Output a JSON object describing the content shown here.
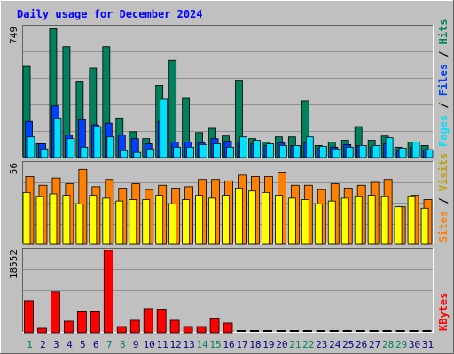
{
  "title": "Daily usage for December 2024",
  "colors": {
    "hits": "#00805c",
    "files": "#0040ff",
    "pages": "#00e0ff",
    "visits": "#ffff00",
    "sites": "#ff8000",
    "kbytes": "#ff0000",
    "weekend_day": "#00805c",
    "weekday_day": "#000080",
    "panel_bg": "#c0c0c0"
  },
  "labels": {
    "hits": "Hits",
    "files": "Files",
    "pages": "Pages",
    "visits": "Visits",
    "sites": "Sites",
    "kbytes": "KBytes",
    "slash": " / "
  },
  "chart_data": [
    {
      "type": "bar",
      "panel": "hits-files-pages",
      "ymax_label": "749",
      "ylim": [
        0,
        749
      ],
      "categories": [
        "1",
        "2",
        "3",
        "4",
        "5",
        "6",
        "7",
        "8",
        "9",
        "10",
        "11",
        "12",
        "13",
        "14",
        "15",
        "16",
        "17",
        "18",
        "19",
        "20",
        "21",
        "22",
        "23",
        "24",
        "25",
        "26",
        "27",
        "28",
        "29",
        "30",
        "31"
      ],
      "weekend_days": [
        "1",
        "7",
        "8",
        "14",
        "15",
        "21",
        "22",
        "28",
        "29"
      ],
      "series": [
        {
          "name": "Hits",
          "values": [
            530,
            80,
            749,
            645,
            440,
            520,
            645,
            230,
            150,
            110,
            420,
            565,
            345,
            145,
            170,
            125,
            450,
            110,
            90,
            120,
            120,
            330,
            70,
            90,
            100,
            180,
            100,
            125,
            60,
            90,
            70
          ]
        },
        {
          "name": "Files",
          "values": [
            210,
            80,
            300,
            130,
            220,
            190,
            200,
            130,
            110,
            80,
            210,
            90,
            90,
            85,
            110,
            95,
            90,
            80,
            70,
            85,
            70,
            85,
            55,
            60,
            75,
            70,
            60,
            80,
            40,
            60,
            45
          ]
        },
        {
          "name": "Pages",
          "values": [
            120,
            50,
            230,
            110,
            60,
            180,
            120,
            40,
            30,
            50,
            340,
            60,
            60,
            75,
            80,
            60,
            120,
            100,
            80,
            70,
            70,
            120,
            65,
            50,
            60,
            70,
            70,
            115,
            55,
            90,
            45
          ]
        }
      ]
    },
    {
      "type": "bar",
      "panel": "visits-sites",
      "ymax_label": "56",
      "ylim": [
        0,
        56
      ],
      "categories": [
        "1",
        "2",
        "3",
        "4",
        "5",
        "6",
        "7",
        "8",
        "9",
        "10",
        "11",
        "12",
        "13",
        "14",
        "15",
        "16",
        "17",
        "18",
        "19",
        "20",
        "21",
        "22",
        "23",
        "24",
        "25",
        "26",
        "27",
        "28",
        "29",
        "30",
        "31"
      ],
      "series": [
        {
          "name": "Visits",
          "values": [
            36,
            33,
            35,
            34,
            28,
            34,
            32,
            30,
            31,
            31,
            34,
            28,
            31,
            34,
            32,
            34,
            39,
            37,
            36,
            34,
            32,
            31,
            28,
            30,
            32,
            33,
            34,
            33,
            26,
            33,
            25
          ]
        },
        {
          "name": "Sites",
          "values": [
            47,
            41,
            46,
            42,
            52,
            40,
            45,
            39,
            42,
            38,
            41,
            39,
            40,
            45,
            45,
            44,
            48,
            47,
            47,
            50,
            41,
            41,
            38,
            42,
            39,
            41,
            43,
            45,
            26,
            34,
            31
          ]
        }
      ]
    },
    {
      "type": "bar",
      "panel": "kbytes",
      "ymax_label": "18552",
      "ylim": [
        0,
        18552
      ],
      "categories": [
        "1",
        "2",
        "3",
        "4",
        "5",
        "6",
        "7",
        "8",
        "9",
        "10",
        "11",
        "12",
        "13",
        "14",
        "15",
        "16",
        "17",
        "18",
        "19",
        "20",
        "21",
        "22",
        "23",
        "24",
        "25",
        "26",
        "27",
        "28",
        "29",
        "30",
        "31"
      ],
      "series": [
        {
          "name": "KBytes",
          "values": [
            7200,
            1000,
            9200,
            2600,
            4900,
            4900,
            18552,
            1400,
            2800,
            5400,
            5300,
            2800,
            1400,
            1400,
            3300,
            2200,
            0,
            0,
            0,
            0,
            0,
            0,
            0,
            0,
            0,
            0,
            0,
            0,
            0,
            0,
            0
          ]
        }
      ]
    }
  ]
}
